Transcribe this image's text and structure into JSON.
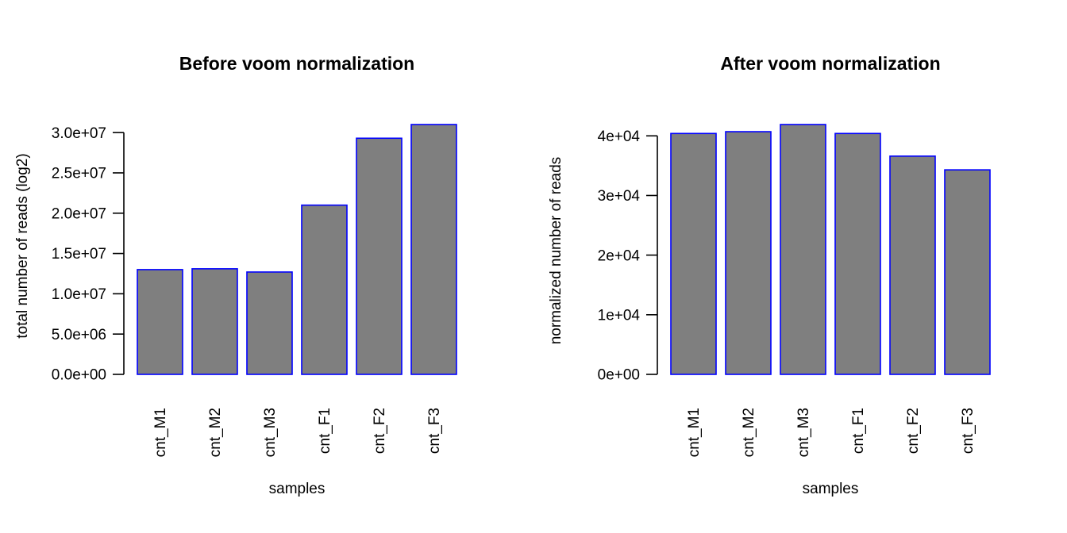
{
  "colors": {
    "bar_fill": "#7f7f7f",
    "bar_border": "#0000ff",
    "axis": "#000000"
  },
  "chart_data": [
    {
      "type": "bar",
      "title": "Before voom normalization",
      "xlabel": "samples",
      "ylabel": "total number of reads (log2)",
      "categories": [
        "cnt_M1",
        "cnt_M2",
        "cnt_M3",
        "cnt_F1",
        "cnt_F2",
        "cnt_F3"
      ],
      "values": [
        13000000,
        13100000,
        12700000,
        21000000,
        29300000,
        31000000
      ],
      "ylim": [
        0,
        31000000
      ],
      "yticks": [
        {
          "value": 0,
          "label": "0.0e+00"
        },
        {
          "value": 5000000,
          "label": "5.0e+06"
        },
        {
          "value": 10000000,
          "label": "1.0e+07"
        },
        {
          "value": 15000000,
          "label": "1.5e+07"
        },
        {
          "value": 20000000,
          "label": "2.0e+07"
        },
        {
          "value": 25000000,
          "label": "2.5e+07"
        },
        {
          "value": 30000000,
          "label": "3.0e+07"
        }
      ],
      "grid": false,
      "legend": "none"
    },
    {
      "type": "bar",
      "title": "After voom normalization",
      "xlabel": "samples",
      "ylabel": "normalized number of reads",
      "categories": [
        "cnt_M1",
        "cnt_M2",
        "cnt_M3",
        "cnt_F1",
        "cnt_F2",
        "cnt_F3"
      ],
      "values": [
        40400,
        40700,
        41900,
        40400,
        36600,
        34300
      ],
      "ylim": [
        0,
        41900
      ],
      "yticks": [
        {
          "value": 0,
          "label": "0e+00"
        },
        {
          "value": 10000,
          "label": "1e+04"
        },
        {
          "value": 20000,
          "label": "2e+04"
        },
        {
          "value": 30000,
          "label": "3e+04"
        },
        {
          "value": 40000,
          "label": "4e+04"
        }
      ],
      "grid": false,
      "legend": "none"
    }
  ]
}
